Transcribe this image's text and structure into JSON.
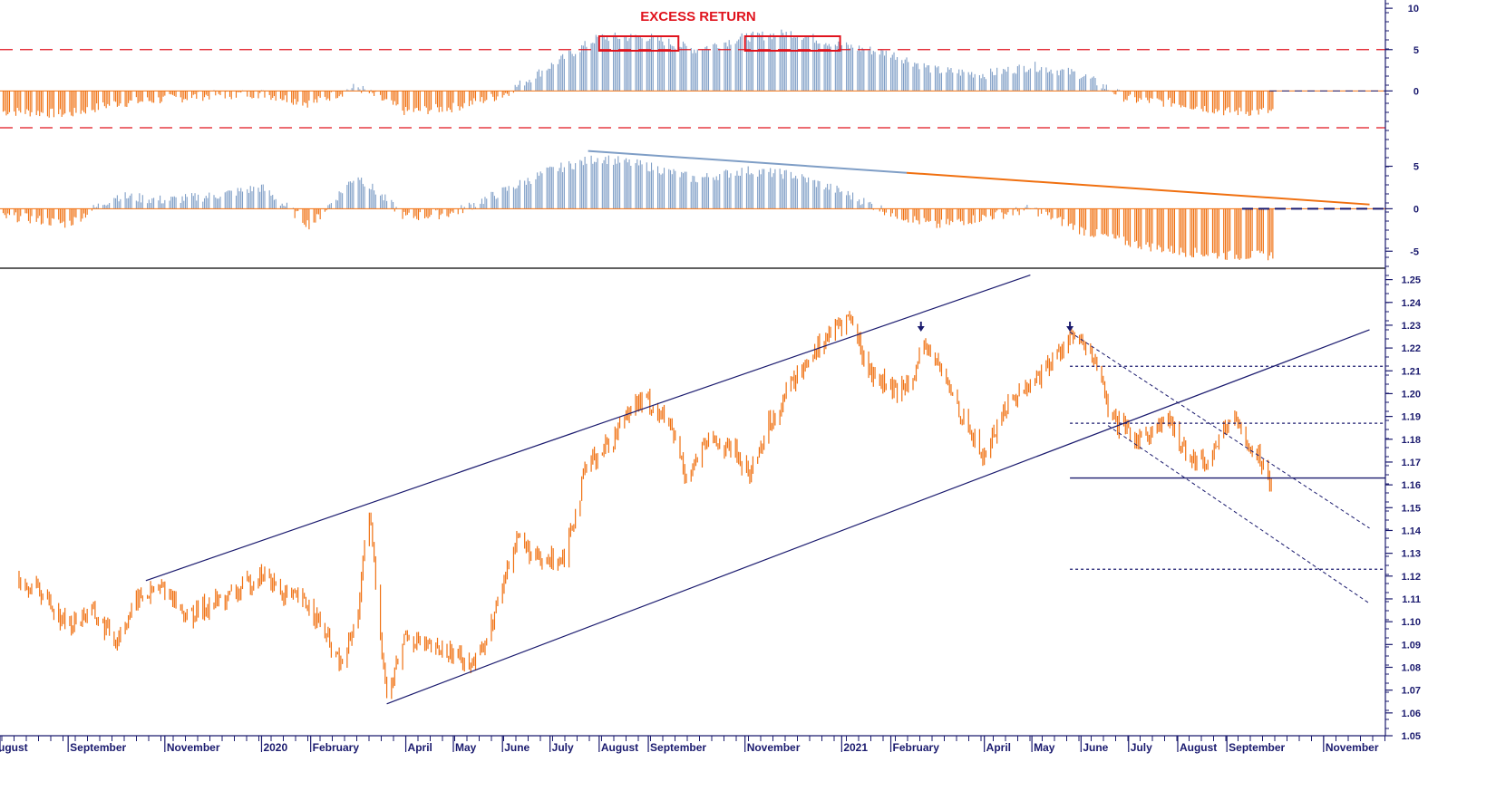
{
  "chart_data": [
    {
      "panel": "excess-return-top",
      "type": "bar",
      "title": "EXCESS RETURN",
      "y_ticks": [
        10,
        5,
        0
      ],
      "ylim": [
        -5,
        11
      ],
      "reference_levels": [
        5.0,
        -5.0
      ],
      "highlight_boxes": [
        {
          "from": "2020-08-01",
          "to": "2020-09-20"
        },
        {
          "from": "2020-11-01",
          "to": "2020-12-31"
        }
      ],
      "colors": {
        "positive": "#7f9ec6",
        "negative": "#f07010",
        "reference": "#e0141e"
      },
      "series": [
        {
          "dates": [
            "2019-08",
            "2019-09",
            "2019-10",
            "2019-11",
            "2019-12",
            "2020-01",
            "2020-02",
            "2020-03",
            "2020-04",
            "2020-05",
            "2020-06",
            "2020-07",
            "2020-08",
            "2020-09",
            "2020-10",
            "2020-11",
            "2020-12",
            "2021-01",
            "2021-02",
            "2021-03",
            "2021-04",
            "2021-05",
            "2021-06",
            "2021-07",
            "2021-08",
            "2021-09"
          ],
          "values": [
            -2.5,
            -2.8,
            -1.5,
            -1.0,
            -0.5,
            -0.3,
            -1.5,
            0.5,
            -2.5,
            -2.0,
            -0.5,
            3.0,
            6.5,
            6.5,
            5.0,
            6.5,
            7.0,
            5.5,
            4.5,
            2.5,
            2.0,
            3.0,
            2.0,
            -1.0,
            -1.5,
            -2.5
          ]
        }
      ]
    },
    {
      "panel": "excess-return-bottom",
      "type": "bar",
      "y_ticks": [
        5,
        0,
        -5
      ],
      "ylim": [
        -7,
        9
      ],
      "trendline": {
        "from": {
          "x": "2020-07-25",
          "y": 6.8
        },
        "to": {
          "x": "2021-11-30",
          "y": 0.5
        }
      },
      "colors": {
        "positive": "#7f9ec6",
        "negative": "#f07010"
      },
      "series": [
        {
          "dates": [
            "2019-08",
            "2019-09",
            "2019-10",
            "2019-11",
            "2019-12",
            "2020-01",
            "2020-02",
            "2020-03",
            "2020-04",
            "2020-05",
            "2020-06",
            "2020-07",
            "2020-08",
            "2020-09",
            "2020-10",
            "2020-11",
            "2020-12",
            "2021-01",
            "2021-02",
            "2021-03",
            "2021-04",
            "2021-05",
            "2021-06",
            "2021-07",
            "2021-08",
            "2021-09"
          ],
          "values": [
            -1.0,
            -1.8,
            1.5,
            1.0,
            1.5,
            2.5,
            -2.0,
            4.0,
            -1.0,
            -0.5,
            2.0,
            4.5,
            6.0,
            5.0,
            3.5,
            4.5,
            4.0,
            2.0,
            -0.5,
            -2.0,
            -1.0,
            0.0,
            -2.5,
            -4.0,
            -5.0,
            -5.5
          ]
        }
      ]
    },
    {
      "panel": "price",
      "type": "line",
      "y_ticks": [
        1.25,
        1.24,
        1.23,
        1.22,
        1.21,
        1.2,
        1.19,
        1.18,
        1.17,
        1.16,
        1.15,
        1.14,
        1.13,
        1.12,
        1.11,
        1.1,
        1.09,
        1.08,
        1.07,
        1.06,
        1.05
      ],
      "ylim": [
        1.05,
        1.255
      ],
      "x_labels": [
        "ugust",
        "September",
        "November",
        "2020",
        "February",
        "April",
        "May",
        "June",
        "July",
        "August",
        "September",
        "November",
        "2021",
        "February",
        "April",
        "May",
        "June",
        "July",
        "August",
        "September",
        "November"
      ],
      "x_label_dates": [
        "2019-08-01",
        "2019-09-01",
        "2019-11-01",
        "2020-01-01",
        "2020-02-01",
        "2020-04-01",
        "2020-05-01",
        "2020-06-01",
        "2020-07-01",
        "2020-08-01",
        "2020-09-01",
        "2020-11-01",
        "2021-01-01",
        "2021-02-01",
        "2021-04-01",
        "2021-05-01",
        "2021-06-01",
        "2021-07-01",
        "2021-08-01",
        "2021-09-01",
        "2021-11-01"
      ],
      "series": [
        {
          "color": "#f07010",
          "points": [
            [
              "2019-08-01",
              1.12
            ],
            [
              "2019-08-15",
              1.113
            ],
            [
              "2019-09-01",
              1.098
            ],
            [
              "2019-09-15",
              1.105
            ],
            [
              "2019-10-01",
              1.092
            ],
            [
              "2019-10-15",
              1.11
            ],
            [
              "2019-11-01",
              1.115
            ],
            [
              "2019-11-15",
              1.102
            ],
            [
              "2019-12-01",
              1.108
            ],
            [
              "2019-12-15",
              1.112
            ],
            [
              "2020-01-01",
              1.121
            ],
            [
              "2020-01-15",
              1.112
            ],
            [
              "2020-02-01",
              1.107
            ],
            [
              "2020-02-20",
              1.08
            ],
            [
              "2020-03-01",
              1.1
            ],
            [
              "2020-03-09",
              1.148
            ],
            [
              "2020-03-20",
              1.066
            ],
            [
              "2020-04-01",
              1.095
            ],
            [
              "2020-04-15",
              1.088
            ],
            [
              "2020-05-01",
              1.086
            ],
            [
              "2020-05-15",
              1.082
            ],
            [
              "2020-05-25",
              1.098
            ],
            [
              "2020-06-10",
              1.138
            ],
            [
              "2020-06-25",
              1.125
            ],
            [
              "2020-07-10",
              1.13
            ],
            [
              "2020-07-25",
              1.17
            ],
            [
              "2020-08-10",
              1.18
            ],
            [
              "2020-08-20",
              1.195
            ],
            [
              "2020-09-01",
              1.197
            ],
            [
              "2020-09-15",
              1.185
            ],
            [
              "2020-09-25",
              1.164
            ],
            [
              "2020-10-10",
              1.18
            ],
            [
              "2020-10-25",
              1.175
            ],
            [
              "2020-11-04",
              1.165
            ],
            [
              "2020-11-15",
              1.185
            ],
            [
              "2020-12-01",
              1.205
            ],
            [
              "2020-12-15",
              1.22
            ],
            [
              "2021-01-06",
              1.234
            ],
            [
              "2021-01-18",
              1.21
            ],
            [
              "2021-02-05",
              1.2
            ],
            [
              "2021-02-25",
              1.22
            ],
            [
              "2021-03-15",
              1.195
            ],
            [
              "2021-03-31",
              1.172
            ],
            [
              "2021-04-15",
              1.195
            ],
            [
              "2021-05-01",
              1.205
            ],
            [
              "2021-05-15",
              1.215
            ],
            [
              "2021-05-25",
              1.226
            ],
            [
              "2021-06-10",
              1.215
            ],
            [
              "2021-06-20",
              1.188
            ],
            [
              "2021-07-07",
              1.18
            ],
            [
              "2021-07-25",
              1.188
            ],
            [
              "2021-08-10",
              1.172
            ],
            [
              "2021-08-20",
              1.17
            ],
            [
              "2021-09-03",
              1.19
            ],
            [
              "2021-09-20",
              1.174
            ],
            [
              "2021-09-30",
              1.16
            ]
          ]
        }
      ],
      "horizontal_levels": [
        {
          "y": 1.212,
          "style": "dotted",
          "from": "2021-05-25"
        },
        {
          "y": 1.187,
          "style": "dotted",
          "from": "2021-05-25"
        },
        {
          "y": 1.163,
          "style": "solid",
          "from": "2021-05-25"
        },
        {
          "y": 1.123,
          "style": "dotted",
          "from": "2021-05-25"
        }
      ],
      "channel_lines": [
        {
          "from": {
            "x": "2019-10-20",
            "y": 1.118
          },
          "to": {
            "x": "2021-04-30",
            "y": 1.252
          }
        },
        {
          "from": {
            "x": "2020-03-20",
            "y": 1.064
          },
          "to": {
            "x": "2021-11-30",
            "y": 1.228
          }
        }
      ],
      "down_channel": [
        {
          "from": {
            "x": "2021-05-25",
            "y": 1.227
          },
          "to": {
            "x": "2021-11-30",
            "y": 1.141
          }
        },
        {
          "from": {
            "x": "2021-06-18",
            "y": 1.186
          },
          "to": {
            "x": "2021-11-30",
            "y": 1.108
          }
        }
      ],
      "arrow_markers": [
        "2021-02-20",
        "2021-05-25"
      ]
    }
  ]
}
